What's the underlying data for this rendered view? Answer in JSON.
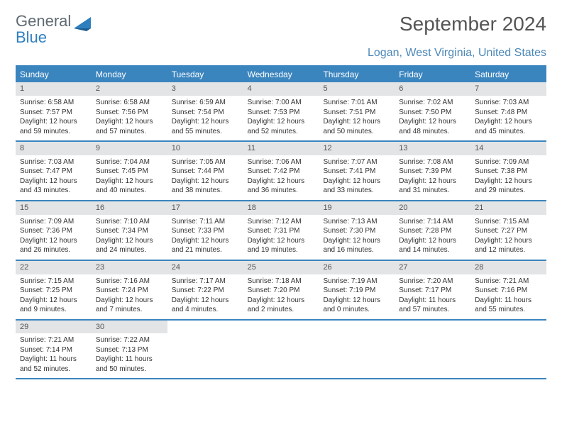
{
  "brand": {
    "word1": "General",
    "word2": "Blue"
  },
  "title": "September 2024",
  "location": "Logan, West Virginia, United States",
  "colors": {
    "accent": "#3b85bf",
    "header_text": "#ffffff",
    "daynum_bg": "#e2e4e6",
    "text": "#333333",
    "location_text": "#4c88b8"
  },
  "day_labels": [
    "Sunday",
    "Monday",
    "Tuesday",
    "Wednesday",
    "Thursday",
    "Friday",
    "Saturday"
  ],
  "weeks": [
    [
      {
        "day": "1",
        "sunrise": "6:58 AM",
        "sunset": "7:57 PM",
        "daylight": "12 hours and 59 minutes."
      },
      {
        "day": "2",
        "sunrise": "6:58 AM",
        "sunset": "7:56 PM",
        "daylight": "12 hours and 57 minutes."
      },
      {
        "day": "3",
        "sunrise": "6:59 AM",
        "sunset": "7:54 PM",
        "daylight": "12 hours and 55 minutes."
      },
      {
        "day": "4",
        "sunrise": "7:00 AM",
        "sunset": "7:53 PM",
        "daylight": "12 hours and 52 minutes."
      },
      {
        "day": "5",
        "sunrise": "7:01 AM",
        "sunset": "7:51 PM",
        "daylight": "12 hours and 50 minutes."
      },
      {
        "day": "6",
        "sunrise": "7:02 AM",
        "sunset": "7:50 PM",
        "daylight": "12 hours and 48 minutes."
      },
      {
        "day": "7",
        "sunrise": "7:03 AM",
        "sunset": "7:48 PM",
        "daylight": "12 hours and 45 minutes."
      }
    ],
    [
      {
        "day": "8",
        "sunrise": "7:03 AM",
        "sunset": "7:47 PM",
        "daylight": "12 hours and 43 minutes."
      },
      {
        "day": "9",
        "sunrise": "7:04 AM",
        "sunset": "7:45 PM",
        "daylight": "12 hours and 40 minutes."
      },
      {
        "day": "10",
        "sunrise": "7:05 AM",
        "sunset": "7:44 PM",
        "daylight": "12 hours and 38 minutes."
      },
      {
        "day": "11",
        "sunrise": "7:06 AM",
        "sunset": "7:42 PM",
        "daylight": "12 hours and 36 minutes."
      },
      {
        "day": "12",
        "sunrise": "7:07 AM",
        "sunset": "7:41 PM",
        "daylight": "12 hours and 33 minutes."
      },
      {
        "day": "13",
        "sunrise": "7:08 AM",
        "sunset": "7:39 PM",
        "daylight": "12 hours and 31 minutes."
      },
      {
        "day": "14",
        "sunrise": "7:09 AM",
        "sunset": "7:38 PM",
        "daylight": "12 hours and 29 minutes."
      }
    ],
    [
      {
        "day": "15",
        "sunrise": "7:09 AM",
        "sunset": "7:36 PM",
        "daylight": "12 hours and 26 minutes."
      },
      {
        "day": "16",
        "sunrise": "7:10 AM",
        "sunset": "7:34 PM",
        "daylight": "12 hours and 24 minutes."
      },
      {
        "day": "17",
        "sunrise": "7:11 AM",
        "sunset": "7:33 PM",
        "daylight": "12 hours and 21 minutes."
      },
      {
        "day": "18",
        "sunrise": "7:12 AM",
        "sunset": "7:31 PM",
        "daylight": "12 hours and 19 minutes."
      },
      {
        "day": "19",
        "sunrise": "7:13 AM",
        "sunset": "7:30 PM",
        "daylight": "12 hours and 16 minutes."
      },
      {
        "day": "20",
        "sunrise": "7:14 AM",
        "sunset": "7:28 PM",
        "daylight": "12 hours and 14 minutes."
      },
      {
        "day": "21",
        "sunrise": "7:15 AM",
        "sunset": "7:27 PM",
        "daylight": "12 hours and 12 minutes."
      }
    ],
    [
      {
        "day": "22",
        "sunrise": "7:15 AM",
        "sunset": "7:25 PM",
        "daylight": "12 hours and 9 minutes."
      },
      {
        "day": "23",
        "sunrise": "7:16 AM",
        "sunset": "7:24 PM",
        "daylight": "12 hours and 7 minutes."
      },
      {
        "day": "24",
        "sunrise": "7:17 AM",
        "sunset": "7:22 PM",
        "daylight": "12 hours and 4 minutes."
      },
      {
        "day": "25",
        "sunrise": "7:18 AM",
        "sunset": "7:20 PM",
        "daylight": "12 hours and 2 minutes."
      },
      {
        "day": "26",
        "sunrise": "7:19 AM",
        "sunset": "7:19 PM",
        "daylight": "12 hours and 0 minutes."
      },
      {
        "day": "27",
        "sunrise": "7:20 AM",
        "sunset": "7:17 PM",
        "daylight": "11 hours and 57 minutes."
      },
      {
        "day": "28",
        "sunrise": "7:21 AM",
        "sunset": "7:16 PM",
        "daylight": "11 hours and 55 minutes."
      }
    ],
    [
      {
        "day": "29",
        "sunrise": "7:21 AM",
        "sunset": "7:14 PM",
        "daylight": "11 hours and 52 minutes."
      },
      {
        "day": "30",
        "sunrise": "7:22 AM",
        "sunset": "7:13 PM",
        "daylight": "11 hours and 50 minutes."
      },
      {
        "empty": true
      },
      {
        "empty": true
      },
      {
        "empty": true
      },
      {
        "empty": true
      },
      {
        "empty": true
      }
    ]
  ],
  "labels": {
    "sunrise": "Sunrise: ",
    "sunset": "Sunset: ",
    "daylight": "Daylight: "
  }
}
